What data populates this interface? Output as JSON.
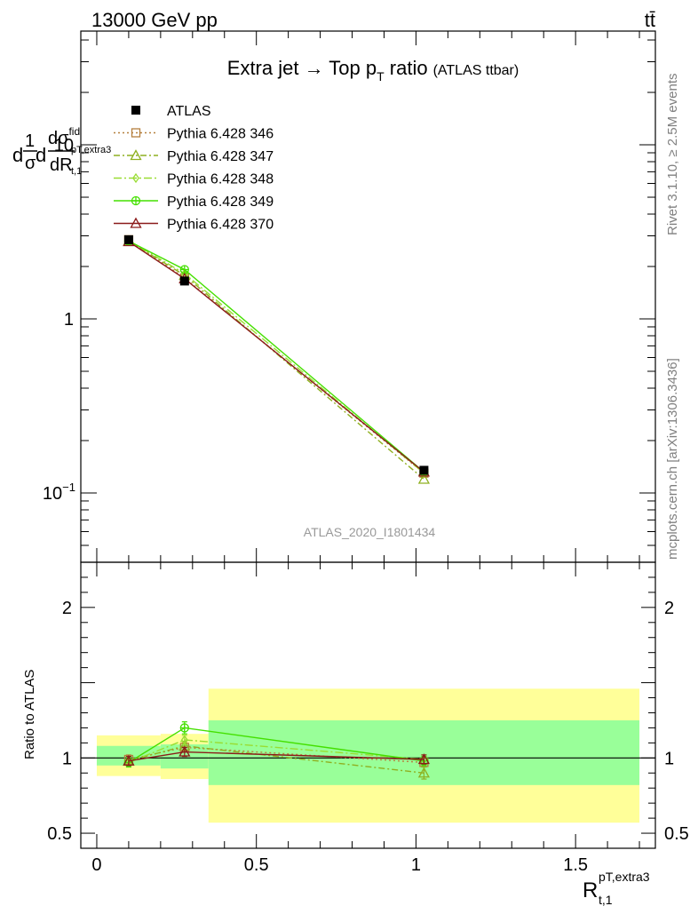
{
  "header": {
    "left": "13000 GeV pp",
    "right": "tt̄"
  },
  "side_labels": {
    "rivet": "Rivet 3.1.10, ≥ 2.5M events",
    "mcplots": "mcplots.cern.ch [arXiv:1306.3436]"
  },
  "watermark": "ATLAS_2020_I1801434",
  "chart_data": [
    {
      "type": "line",
      "panel": "main",
      "title": {
        "main": "Extra jet → Top p",
        "sub": "T",
        "suffix": " ratio",
        "small": "(ATLAS ttbar)"
      },
      "yscale": "log",
      "ylim": [
        0.04,
        45
      ],
      "xlim": [
        -0.05,
        1.75
      ],
      "y_ticks": [
        {
          "value": 10,
          "label": "10"
        },
        {
          "value": 1,
          "label": "1"
        },
        {
          "value": 0.1,
          "label": "10",
          "sup": "−1"
        }
      ],
      "ylabel": {
        "d": "d",
        "one": "1",
        "sigma": "σ",
        "d2": "d",
        "num": "dσ",
        "num_sup": "fid",
        "num_sub": "pT,extra3",
        "den": "dR",
        "den_sub": "t,1"
      },
      "legend_position": "top-left",
      "x": [
        0.1,
        0.275,
        1.025
      ],
      "data": {
        "name": "ATLAS",
        "values": [
          2.85,
          1.65,
          0.135
        ],
        "bins": [
          [
            0.0,
            0.2
          ],
          [
            0.2,
            0.35
          ],
          [
            0.35,
            1.7
          ]
        ]
      },
      "series": [
        {
          "name": "Pythia 6.428 346",
          "color": "#b5803f",
          "marker": "square-open",
          "dash": "2,3",
          "values": [
            2.85,
            1.72,
            0.13
          ]
        },
        {
          "name": "Pythia 6.428 347",
          "color": "#8fb020",
          "marker": "triangle-open",
          "dash": "7,3,2,3",
          "values": [
            2.8,
            1.78,
            0.12
          ]
        },
        {
          "name": "Pythia 6.428 348",
          "color": "#99dd33",
          "marker": "diamond-open",
          "dash": "9,3,2,3",
          "values": [
            2.82,
            1.82,
            0.13
          ]
        },
        {
          "name": "Pythia 6.428 349",
          "color": "#44e000",
          "marker": "circle-cross",
          "dash": "",
          "values": [
            2.8,
            1.92,
            0.132
          ]
        },
        {
          "name": "Pythia 6.428 370",
          "color": "#8b1a1a",
          "marker": "triangle-open",
          "dash": "",
          "values": [
            2.78,
            1.7,
            0.132
          ]
        }
      ]
    },
    {
      "type": "line",
      "panel": "ratio",
      "ylabel": "Ratio to ATLAS",
      "xlabel": {
        "base": "R",
        "sup": "pT,extra3",
        "sub": "t,1"
      },
      "ylim": [
        0.4,
        2.3
      ],
      "xlim": [
        -0.05,
        1.75
      ],
      "y_ticks": [
        {
          "value": 0.5,
          "label": "0.5"
        },
        {
          "value": 1,
          "label": "1"
        },
        {
          "value": 2,
          "label": "2"
        }
      ],
      "x_ticks": [
        {
          "value": 0,
          "label": "0"
        },
        {
          "value": 0.5,
          "label": "0.5"
        },
        {
          "value": 1,
          "label": "1"
        },
        {
          "value": 1.5,
          "label": "1.5"
        }
      ],
      "bands": [
        {
          "x0": 0.0,
          "x1": 0.2,
          "stat": [
            0.95,
            1.08
          ],
          "total": [
            0.88,
            1.15
          ]
        },
        {
          "x0": 0.2,
          "x1": 0.35,
          "stat": [
            0.93,
            1.09
          ],
          "total": [
            0.86,
            1.16
          ]
        },
        {
          "x0": 0.35,
          "x1": 1.7,
          "stat": [
            0.82,
            1.25
          ],
          "total": [
            0.57,
            1.46
          ]
        }
      ],
      "band_colors": {
        "stat": "#99ff99",
        "total": "#ffff99"
      },
      "x": [
        0.1,
        0.275,
        1.025
      ],
      "series": [
        {
          "name": "Pythia 6.428 346",
          "color": "#b5803f",
          "marker": "square-open",
          "dash": "2,3",
          "values": [
            0.99,
            1.07,
            0.97
          ],
          "err": [
            0.03,
            0.03,
            0.03
          ]
        },
        {
          "name": "Pythia 6.428 347",
          "color": "#8fb020",
          "marker": "triangle-open",
          "dash": "7,3,2,3",
          "values": [
            0.98,
            1.08,
            0.9
          ],
          "err": [
            0.03,
            0.03,
            0.04
          ]
        },
        {
          "name": "Pythia 6.428 348",
          "color": "#99dd33",
          "marker": "diamond-open",
          "dash": "9,3,2,3",
          "values": [
            0.97,
            1.12,
            0.99
          ],
          "err": [
            0.03,
            0.03,
            0.03
          ]
        },
        {
          "name": "Pythia 6.428 349",
          "color": "#44e000",
          "marker": "circle-cross",
          "dash": "",
          "values": [
            0.97,
            1.2,
            0.98
          ],
          "err": [
            0.03,
            0.04,
            0.03
          ]
        },
        {
          "name": "Pythia 6.428 370",
          "color": "#8b1a1a",
          "marker": "triangle-open",
          "dash": "",
          "values": [
            0.98,
            1.04,
            0.99
          ],
          "err": [
            0.03,
            0.03,
            0.03
          ]
        }
      ]
    }
  ]
}
